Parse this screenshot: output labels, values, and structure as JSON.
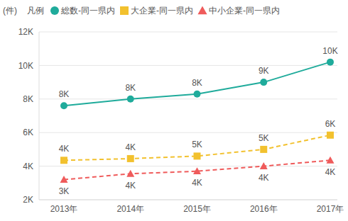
{
  "chart_data": {
    "type": "line",
    "y_label": "(件)",
    "legend_title": "凡例",
    "categories": [
      "2013年",
      "2014年",
      "2015年",
      "2016年",
      "2017年"
    ],
    "series": [
      {
        "name": "総数-同一県内",
        "color": "#1fab9b",
        "marker": "circle",
        "line_style": "solid",
        "values": [
          7600,
          8000,
          8300,
          9000,
          10200
        ],
        "value_labels": [
          "8K",
          "8K",
          "8K",
          "9K",
          "10K"
        ]
      },
      {
        "name": "大企業-同一県内",
        "color": "#f2c12e",
        "marker": "square",
        "line_style": "dashed",
        "values": [
          4350,
          4450,
          4600,
          5000,
          5850
        ],
        "value_labels": [
          "4K",
          "4K",
          "5K",
          "5K",
          "6K"
        ]
      },
      {
        "name": "中小企業-同一県内",
        "color": "#ef5b5b",
        "marker": "triangle",
        "line_style": "dashed",
        "values": [
          3200,
          3550,
          3700,
          4000,
          4350
        ],
        "value_labels": [
          "3K",
          "4K",
          "4K",
          "4K",
          "4K"
        ]
      }
    ],
    "ylim": [
      2000,
      12000
    ],
    "yticks": [
      {
        "value": 2000,
        "label": "2K"
      },
      {
        "value": 4000,
        "label": "4K"
      },
      {
        "value": 6000,
        "label": "6K"
      },
      {
        "value": 8000,
        "label": "8K"
      },
      {
        "value": 10000,
        "label": "10K"
      },
      {
        "value": 12000,
        "label": "12K"
      }
    ],
    "grid": true,
    "data_labels": true
  }
}
